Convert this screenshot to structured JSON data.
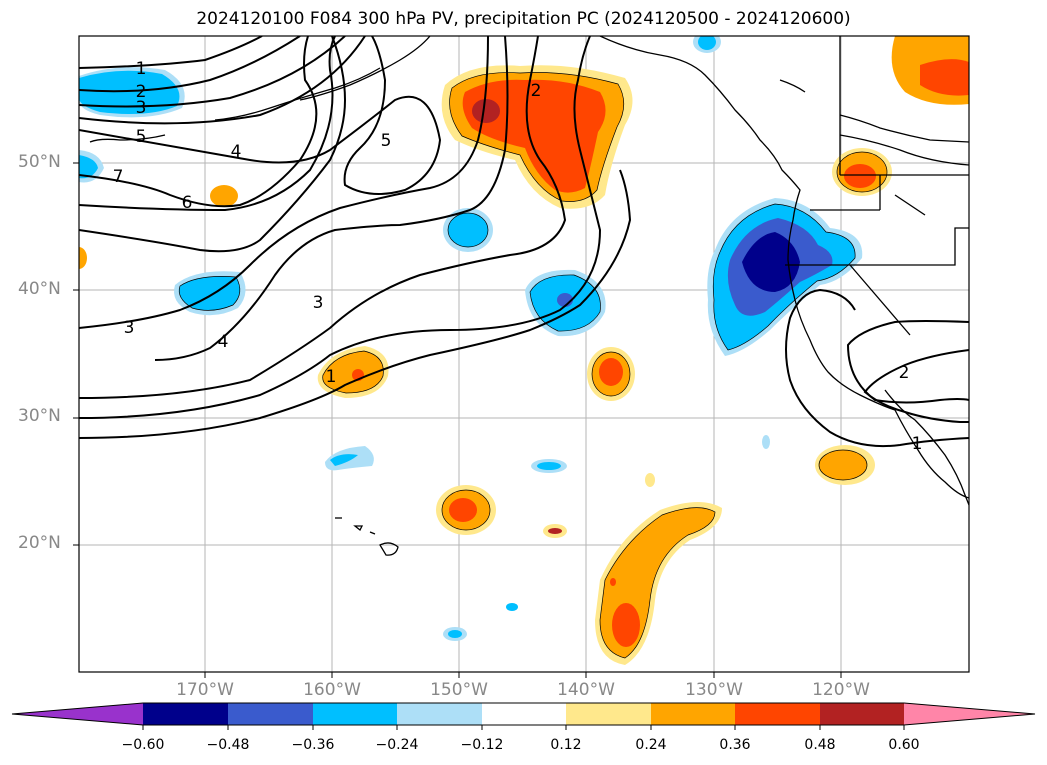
{
  "title": "2024120100 F084 300 hPa PV, precipitation PC (2024120500 - 2024120600)",
  "lat_labels": [
    "50°N",
    "40°N",
    "30°N",
    "20°N"
  ],
  "lon_labels": [
    "170°W",
    "160°W",
    "150°W",
    "140°W",
    "130°W",
    "120°W"
  ],
  "colorbar": {
    "ticks": [
      "−0.60",
      "−0.48",
      "−0.36",
      "−0.24",
      "−0.12",
      "0.12",
      "0.24",
      "0.36",
      "0.48",
      "0.60"
    ],
    "colors": [
      "#9932CC",
      "#00008B",
      "#3A5BCD",
      "#00BFFF",
      "#ADDFF7",
      "#FFFFFF",
      "#FFE88C",
      "#FFA500",
      "#FF4500",
      "#B22222",
      "#FF85A8"
    ]
  },
  "contour_labels": [
    "1",
    "2",
    "3",
    "5",
    "4",
    "7",
    "6",
    "5",
    "2",
    "3",
    "3",
    "4",
    "1",
    "2",
    "1"
  ],
  "colors": {
    "pos_light": "#FFE88C",
    "pos_mid": "#FFA500",
    "pos_high": "#FF4500",
    "pos_max": "#B22222",
    "neg_light": "#ADDFF7",
    "neg_mid": "#00BFFF",
    "neg_high": "#3A5BCD",
    "neg_max": "#00008B"
  }
}
